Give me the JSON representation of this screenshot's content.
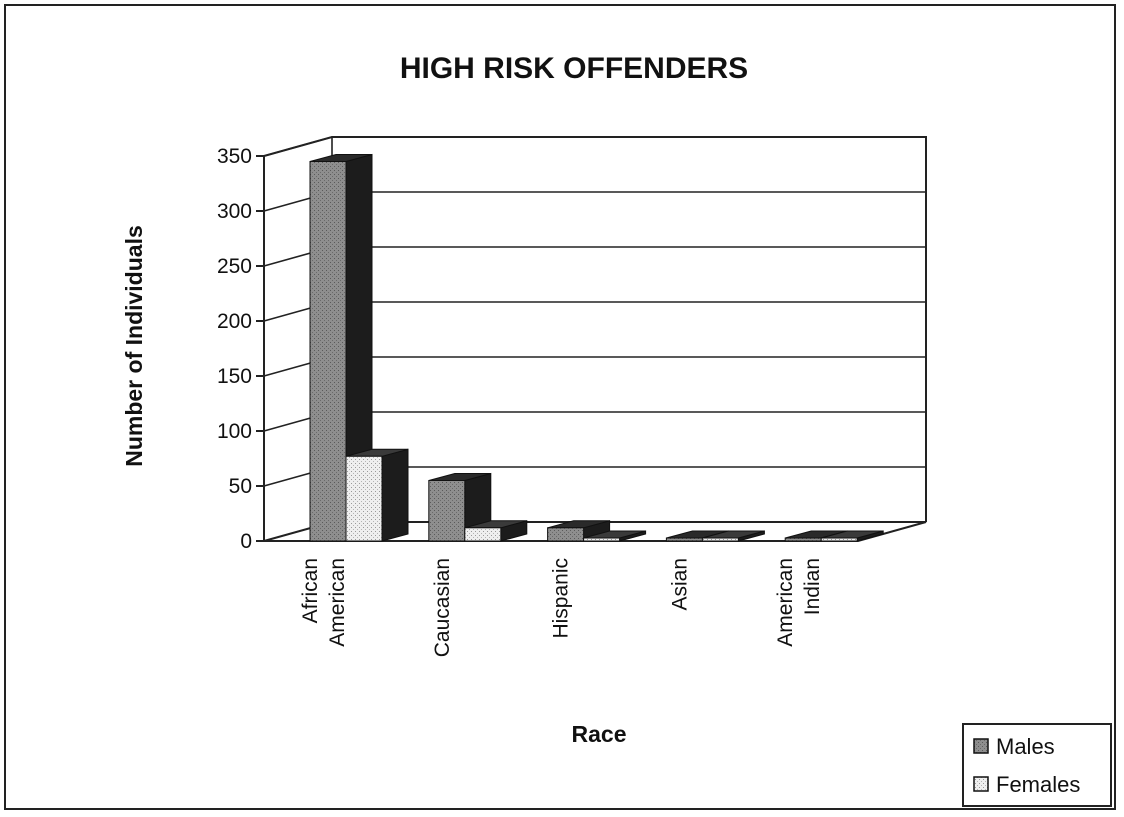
{
  "chart_data": {
    "type": "bar",
    "title": "HIGH RISK OFFENDERS",
    "xlabel": "Race",
    "ylabel": "Number of Individuals",
    "categories": [
      "African American",
      "Caucasian",
      "Hispanic",
      "Asian",
      "American Indian"
    ],
    "category_lines": [
      [
        "African",
        "American"
      ],
      [
        "Caucasian"
      ],
      [
        "Hispanic"
      ],
      [
        "Asian"
      ],
      [
        "American",
        "Indian"
      ]
    ],
    "series": [
      {
        "name": "Males",
        "values": [
          345,
          55,
          12,
          1,
          1
        ]
      },
      {
        "name": "Females",
        "values": [
          77,
          12,
          2,
          0,
          0
        ]
      }
    ],
    "ylim": [
      0,
      350
    ],
    "yticks": [
      0,
      50,
      100,
      150,
      200,
      250,
      300,
      350
    ],
    "grid": true,
    "legend": "bottom-right",
    "three_d": true
  },
  "colors": {
    "male_front": "#8e8e8e",
    "male_side": "#1c1c1c",
    "male_top": "#2a2a2a",
    "female_front": "#e2e2e2",
    "female_side": "#1c1c1c",
    "female_top": "#3a3a3a",
    "grid": "#222222",
    "axis": "#222222"
  }
}
